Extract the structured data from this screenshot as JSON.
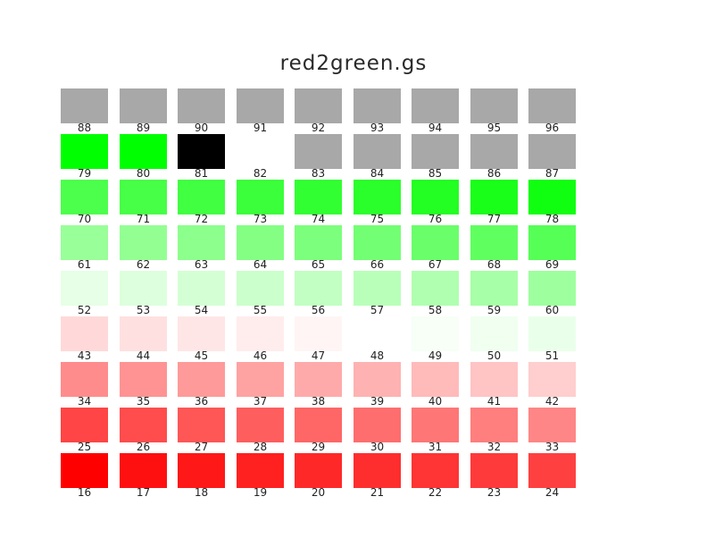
{
  "title": "red2green.gs",
  "rows": [
    [
      {
        "label": "88",
        "color": "#a8a8a8"
      },
      {
        "label": "89",
        "color": "#a8a8a8"
      },
      {
        "label": "90",
        "color": "#a8a8a8"
      },
      {
        "label": "91",
        "color": "#a8a8a8"
      },
      {
        "label": "92",
        "color": "#a8a8a8"
      },
      {
        "label": "93",
        "color": "#a8a8a8"
      },
      {
        "label": "94",
        "color": "#a8a8a8"
      },
      {
        "label": "95",
        "color": "#a8a8a8"
      },
      {
        "label": "96",
        "color": "#a8a8a8"
      }
    ],
    [
      {
        "label": "79",
        "color": "#00ff00"
      },
      {
        "label": "80",
        "color": "#00ff00"
      },
      {
        "label": "81",
        "color": "#000000"
      },
      {
        "label": "82",
        "color": "#ffffff"
      },
      {
        "label": "83",
        "color": "#a8a8a8"
      },
      {
        "label": "84",
        "color": "#a8a8a8"
      },
      {
        "label": "85",
        "color": "#a8a8a8"
      },
      {
        "label": "86",
        "color": "#a8a8a8"
      },
      {
        "label": "87",
        "color": "#a8a8a8"
      }
    ],
    [
      {
        "label": "70",
        "color": "#4cff4c"
      },
      {
        "label": "71",
        "color": "#47ff47"
      },
      {
        "label": "72",
        "color": "#41ff41"
      },
      {
        "label": "73",
        "color": "#3aff3a"
      },
      {
        "label": "74",
        "color": "#32ff32"
      },
      {
        "label": "75",
        "color": "#2bff2b"
      },
      {
        "label": "76",
        "color": "#23ff23"
      },
      {
        "label": "77",
        "color": "#1aff1a"
      },
      {
        "label": "78",
        "color": "#10ff10"
      }
    ],
    [
      {
        "label": "61",
        "color": "#99ff99"
      },
      {
        "label": "62",
        "color": "#93ff93"
      },
      {
        "label": "63",
        "color": "#8cff8c"
      },
      {
        "label": "64",
        "color": "#84ff84"
      },
      {
        "label": "65",
        "color": "#7cff7c"
      },
      {
        "label": "66",
        "color": "#73ff73"
      },
      {
        "label": "67",
        "color": "#6aff6a"
      },
      {
        "label": "68",
        "color": "#60ff60"
      },
      {
        "label": "69",
        "color": "#56ff56"
      }
    ],
    [
      {
        "label": "52",
        "color": "#e6ffe6"
      },
      {
        "label": "53",
        "color": "#ddffdd"
      },
      {
        "label": "54",
        "color": "#d4ffd4"
      },
      {
        "label": "55",
        "color": "#cbffcb"
      },
      {
        "label": "56",
        "color": "#c2ffc2"
      },
      {
        "label": "57",
        "color": "#b9ffb9"
      },
      {
        "label": "58",
        "color": "#b0ffb0"
      },
      {
        "label": "59",
        "color": "#a7ffa7"
      },
      {
        "label": "60",
        "color": "#9eff9e"
      }
    ],
    [
      {
        "label": "43",
        "color": "#ffd9d9"
      },
      {
        "label": "44",
        "color": "#ffe0e0"
      },
      {
        "label": "45",
        "color": "#ffe6e6"
      },
      {
        "label": "46",
        "color": "#ffeded"
      },
      {
        "label": "47",
        "color": "#fff5f5"
      },
      {
        "label": "48",
        "color": "#ffffff"
      },
      {
        "label": "49",
        "color": "#f7fff7"
      },
      {
        "label": "50",
        "color": "#f0fff0"
      },
      {
        "label": "51",
        "color": "#eaffea"
      }
    ],
    [
      {
        "label": "34",
        "color": "#ff8c8c"
      },
      {
        "label": "35",
        "color": "#ff9393"
      },
      {
        "label": "36",
        "color": "#ff9a9a"
      },
      {
        "label": "37",
        "color": "#ffa2a2"
      },
      {
        "label": "38",
        "color": "#ffaaaa"
      },
      {
        "label": "39",
        "color": "#ffb2b2"
      },
      {
        "label": "40",
        "color": "#ffbaba"
      },
      {
        "label": "41",
        "color": "#ffc4c4"
      },
      {
        "label": "42",
        "color": "#ffcece"
      }
    ],
    [
      {
        "label": "25",
        "color": "#ff4545"
      },
      {
        "label": "26",
        "color": "#ff4d4d"
      },
      {
        "label": "27",
        "color": "#ff5656"
      },
      {
        "label": "28",
        "color": "#ff5e5e"
      },
      {
        "label": "29",
        "color": "#ff6666"
      },
      {
        "label": "30",
        "color": "#ff6e6e"
      },
      {
        "label": "31",
        "color": "#ff7676"
      },
      {
        "label": "32",
        "color": "#ff7e7e"
      },
      {
        "label": "33",
        "color": "#ff8686"
      }
    ],
    [
      {
        "label": "16",
        "color": "#ff0000"
      },
      {
        "label": "17",
        "color": "#ff1010"
      },
      {
        "label": "18",
        "color": "#ff1818"
      },
      {
        "label": "19",
        "color": "#ff2020"
      },
      {
        "label": "20",
        "color": "#ff2828"
      },
      {
        "label": "21",
        "color": "#ff2e2e"
      },
      {
        "label": "22",
        "color": "#ff3434"
      },
      {
        "label": "23",
        "color": "#ff3a3a"
      },
      {
        "label": "24",
        "color": "#ff4040"
      }
    ]
  ]
}
